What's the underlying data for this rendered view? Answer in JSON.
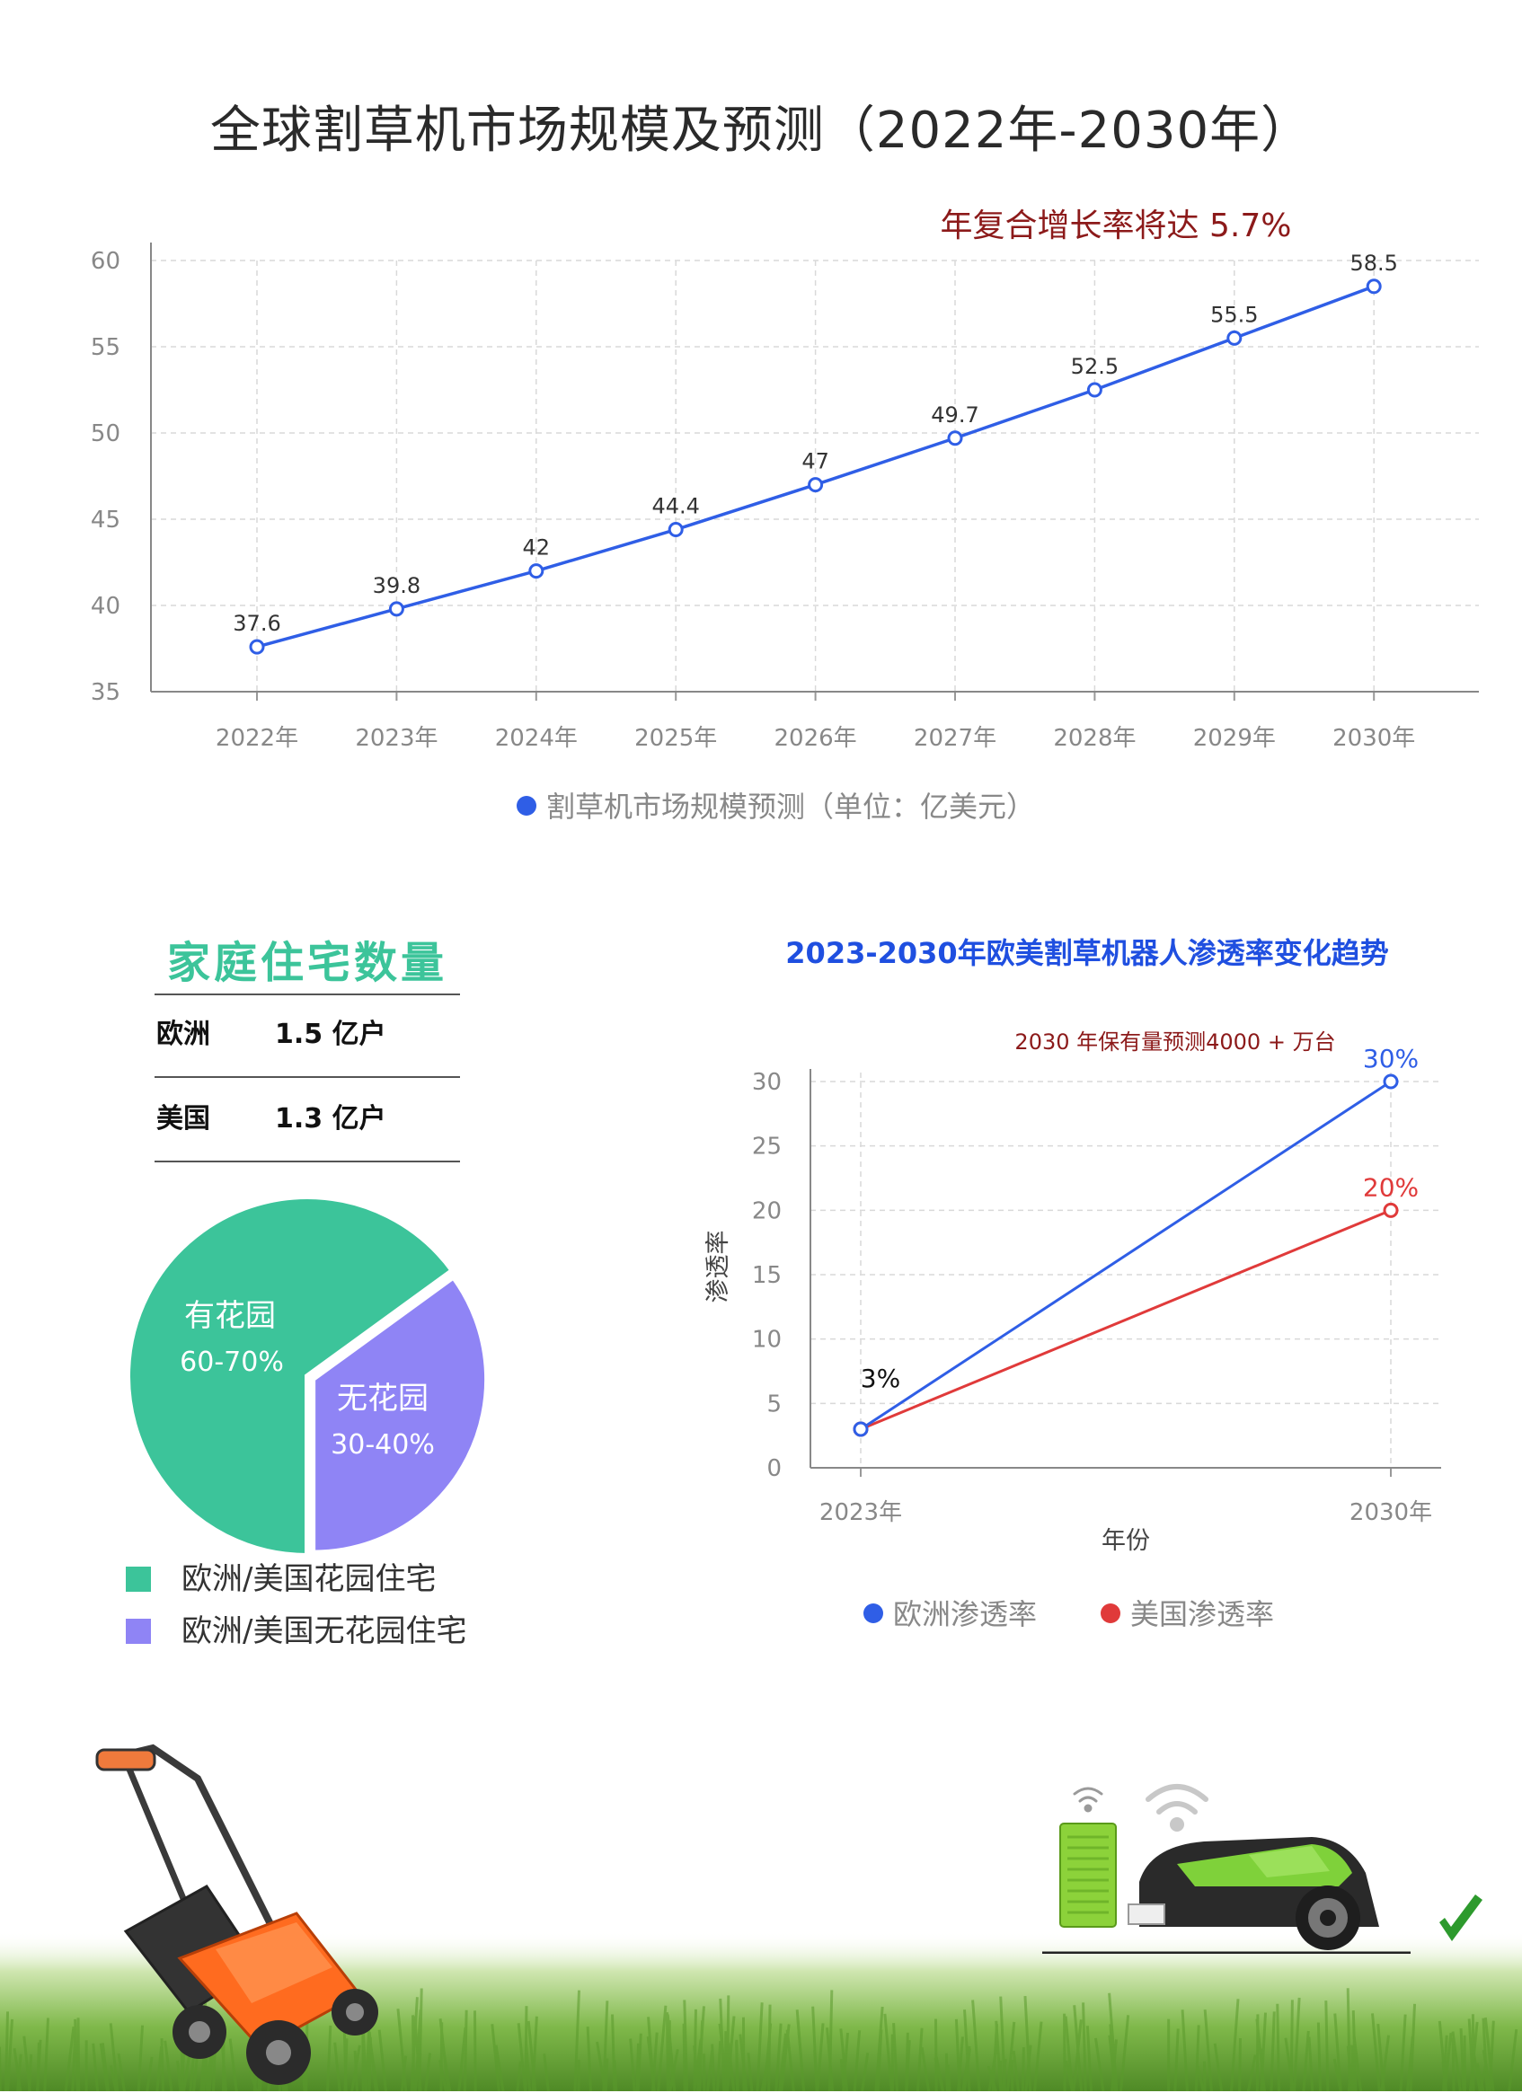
{
  "main_title": "全球割草机市场规模及预测（2022年-2030年）",
  "colors": {
    "line_blue": "#2f5ee6",
    "line_red": "#e03a3a",
    "annotation_dark_red": "#8c1a1a",
    "teal": "#3cc49a",
    "purple": "#8f84f5",
    "grid": "#d9d9d9",
    "axis_text": "#888888"
  },
  "chart_data": [
    {
      "type": "line",
      "title": "",
      "x": [
        "2022年",
        "2023年",
        "2024年",
        "2025年",
        "2026年",
        "2027年",
        "2028年",
        "2029年",
        "2030年"
      ],
      "series": [
        {
          "name": "割草机市场规模预测（单位：亿美元）",
          "values": [
            37.6,
            39.8,
            42,
            44.4,
            47,
            49.7,
            52.5,
            55.5,
            58.5
          ],
          "labels": [
            "37.6",
            "39.8",
            "42",
            "44.4",
            "47",
            "49.7",
            "52.5",
            "55.5",
            "58.5"
          ],
          "color": "#2f5ee6"
        }
      ],
      "ylim": [
        35,
        60
      ],
      "yticks": [
        "35",
        "40",
        "45",
        "50",
        "55",
        "60"
      ],
      "xlabel": "",
      "ylabel": "",
      "annotation": "年复合增长率将达 5.7%",
      "grid": true,
      "legend_position": "bottom"
    },
    {
      "type": "pie",
      "title": "",
      "slices": [
        {
          "name": "欧洲/美国花园住宅",
          "label": "有花园",
          "range_label": "60-70%",
          "value": 65,
          "color": "#3cc49a"
        },
        {
          "name": "欧洲/美国无花园住宅",
          "label": "无花园",
          "range_label": "30-40%",
          "value": 35,
          "color": "#8f84f5"
        }
      ],
      "legend_position": "bottom"
    },
    {
      "type": "line",
      "title": "2023-2030年欧美割草机器人渗透率变化趋势",
      "x": [
        "2023年",
        "2030年"
      ],
      "series": [
        {
          "name": "欧洲渗透率",
          "values": [
            3,
            30
          ],
          "end_label": "30%",
          "color": "#2f5ee6"
        },
        {
          "name": "美国渗透率",
          "values": [
            3,
            20
          ],
          "end_label": "20%",
          "color": "#e03a3a"
        }
      ],
      "start_label": "3%",
      "ylim": [
        0,
        30
      ],
      "yticks": [
        "0",
        "5",
        "10",
        "15",
        "20",
        "25",
        "30"
      ],
      "xlabel": "年份",
      "ylabel": "渗透率",
      "annotation": "2030 年保有量预测4000 + 万台",
      "grid": true,
      "legend_position": "bottom"
    }
  ],
  "households": {
    "title": "家庭住宅数量",
    "rows": [
      {
        "region": "欧洲",
        "value": "1.5 亿户"
      },
      {
        "region": "美国",
        "value": "1.3 亿户"
      }
    ]
  },
  "illustrations": [
    "lawn-mower-icon",
    "robot-mower-icon",
    "wifi-icon",
    "checkmark-icon",
    "grass-image"
  ]
}
